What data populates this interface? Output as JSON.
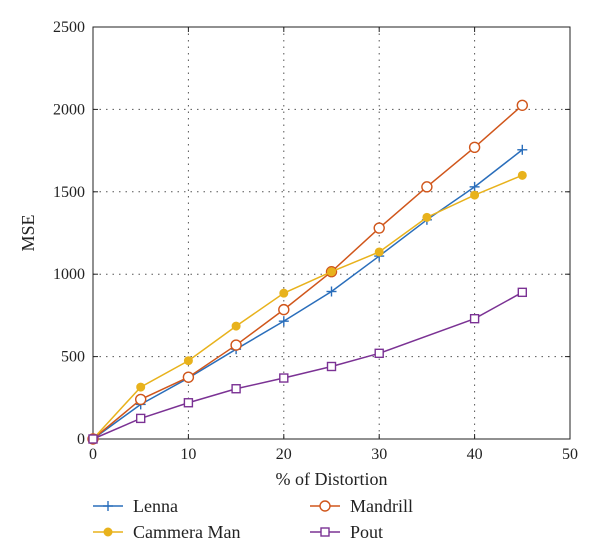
{
  "chart_data": {
    "type": "line",
    "xlabel": "% of Distortion",
    "ylabel": "MSE",
    "xlim": [
      0,
      50
    ],
    "ylim": [
      0,
      2500
    ],
    "xticks": [
      0,
      10,
      20,
      30,
      40,
      50
    ],
    "yticks": [
      0,
      500,
      1000,
      1500,
      2000,
      2500
    ],
    "grid": true,
    "legend_position": "bottom",
    "x": [
      0,
      5,
      10,
      15,
      20,
      25,
      30,
      35,
      40,
      45
    ],
    "series": [
      {
        "name": "Lenna",
        "color": "#2a6ebb",
        "marker": "plus",
        "values": [
          0,
          210,
          370,
          545,
          715,
          895,
          1110,
          1330,
          1530,
          1755
        ]
      },
      {
        "name": "Mandrill",
        "color": "#d0561b",
        "marker": "circle",
        "values": [
          0,
          240,
          375,
          570,
          785,
          1015,
          1280,
          1530,
          1770,
          2025
        ]
      },
      {
        "name": "Cammera Man",
        "color": "#e8b21c",
        "marker": "dot",
        "values": [
          0,
          315,
          475,
          685,
          885,
          1015,
          1135,
          1345,
          1480,
          1600
        ]
      },
      {
        "name": "Pout",
        "color": "#7b3294",
        "marker": "square",
        "values": [
          0,
          125,
          220,
          305,
          370,
          440,
          520,
          null,
          730,
          890
        ]
      }
    ]
  }
}
